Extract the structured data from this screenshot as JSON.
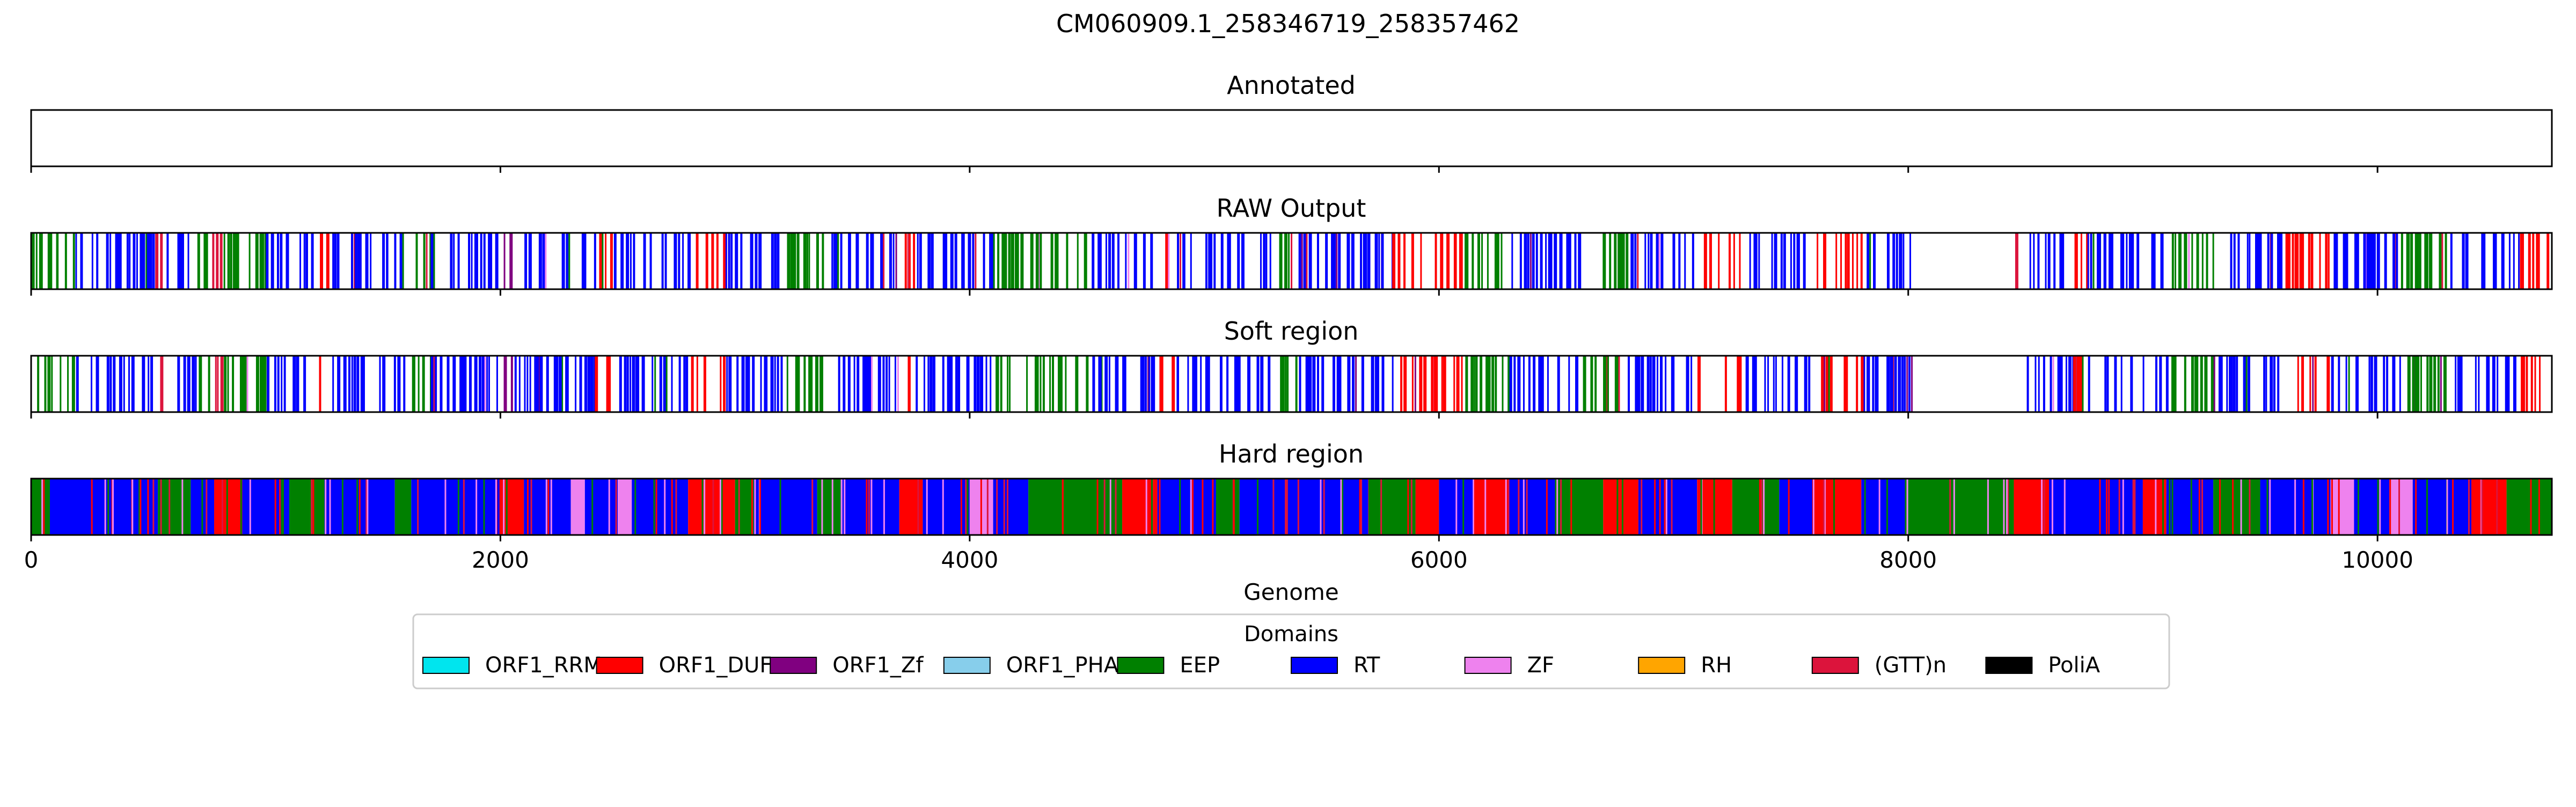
{
  "chart_data": {
    "type": "genome-track",
    "title": "CM060909.1_258346719_258357462",
    "xlabel": "Genome",
    "xlim": [
      0,
      10743
    ],
    "xticks": [
      0,
      2000,
      4000,
      6000,
      8000,
      10000
    ],
    "xtick_labels": [
      "0",
      "2000",
      "4000",
      "6000",
      "8000",
      "10000"
    ],
    "legend": {
      "title": "Domains",
      "placement": "bottom-center",
      "entries": [
        {
          "name": "ORF1_RRM",
          "color": "#00e5ee"
        },
        {
          "name": "ORF1_DUF",
          "color": "#ff0000"
        },
        {
          "name": "ORF1_Zf",
          "color": "#800080"
        },
        {
          "name": "ORF1_PHA",
          "color": "#87ceeb"
        },
        {
          "name": "EEP",
          "color": "#008000"
        },
        {
          "name": "RT",
          "color": "#0000ff"
        },
        {
          "name": "ZF",
          "color": "#ee82ee"
        },
        {
          "name": "RH",
          "color": "#ffa500"
        },
        {
          "name": "(GTT)n",
          "color": "#dc143c"
        },
        {
          "name": "PoliA",
          "color": "#000000"
        }
      ]
    },
    "tracks": [
      {
        "name": "Annotated",
        "mode": "empty",
        "segments": []
      },
      {
        "name": "RAW Output",
        "mode": "sparse",
        "segments": [
          [
            0,
            180,
            "EEP"
          ],
          [
            180,
            520,
            "RT"
          ],
          [
            520,
            560,
            "(GTT)n"
          ],
          [
            560,
            700,
            "RT"
          ],
          [
            700,
            760,
            "EEP"
          ],
          [
            760,
            820,
            "(GTT)n"
          ],
          [
            820,
            1000,
            "EEP"
          ],
          [
            1000,
            1200,
            "RT"
          ],
          [
            1200,
            1260,
            "ORF1_DUF"
          ],
          [
            1260,
            1600,
            "RT"
          ],
          [
            1600,
            1700,
            "EEP"
          ],
          [
            1700,
            2000,
            "RT"
          ],
          [
            2000,
            2060,
            "ORF1_Zf"
          ],
          [
            2060,
            2400,
            "RT"
          ],
          [
            2400,
            2470,
            "ORF1_DUF"
          ],
          [
            2470,
            2800,
            "RT"
          ],
          [
            2800,
            2950,
            "ORF1_DUF"
          ],
          [
            2950,
            3200,
            "RT"
          ],
          [
            3200,
            3400,
            "EEP"
          ],
          [
            3400,
            3700,
            "RT"
          ],
          [
            3700,
            3760,
            "ORF1_DUF"
          ],
          [
            3760,
            4100,
            "RT"
          ],
          [
            4100,
            4500,
            "EEP"
          ],
          [
            4500,
            4800,
            "RT"
          ],
          [
            4800,
            4870,
            "ORF1_DUF"
          ],
          [
            4870,
            5300,
            "RT"
          ],
          [
            5300,
            5400,
            "EEP"
          ],
          [
            5400,
            5800,
            "RT"
          ],
          [
            5800,
            6100,
            "ORF1_DUF"
          ],
          [
            6100,
            6300,
            "EEP"
          ],
          [
            6300,
            6600,
            "RT"
          ],
          [
            6600,
            6800,
            "EEP"
          ],
          [
            6800,
            7100,
            "RT"
          ],
          [
            7100,
            7300,
            "ORF1_DUF"
          ],
          [
            7300,
            7600,
            "RT"
          ],
          [
            7600,
            7800,
            "ORF1_DUF"
          ],
          [
            7800,
            8010,
            "RT"
          ],
          [
            8450,
            8470,
            "(GTT)n"
          ],
          [
            8500,
            8700,
            "RT"
          ],
          [
            8700,
            8760,
            "ORF1_DUF"
          ],
          [
            8760,
            9100,
            "RT"
          ],
          [
            9100,
            9300,
            "EEP"
          ],
          [
            9300,
            9600,
            "RT"
          ],
          [
            9600,
            9800,
            "ORF1_DUF"
          ],
          [
            9800,
            10100,
            "RT"
          ],
          [
            10100,
            10300,
            "EEP"
          ],
          [
            10300,
            10600,
            "RT"
          ],
          [
            10600,
            10743,
            "ORF1_DUF"
          ]
        ]
      },
      {
        "name": "Soft region",
        "mode": "sparse",
        "segments": [
          [
            0,
            180,
            "EEP"
          ],
          [
            180,
            520,
            "RT"
          ],
          [
            520,
            560,
            "(GTT)n"
          ],
          [
            560,
            700,
            "RT"
          ],
          [
            700,
            760,
            "EEP"
          ],
          [
            760,
            820,
            "(GTT)n"
          ],
          [
            820,
            1000,
            "EEP"
          ],
          [
            1000,
            1200,
            "RT"
          ],
          [
            1200,
            1260,
            "ORF1_DUF"
          ],
          [
            1260,
            1600,
            "RT"
          ],
          [
            1600,
            1700,
            "EEP"
          ],
          [
            1700,
            2000,
            "RT"
          ],
          [
            2000,
            2060,
            "ORF1_Zf"
          ],
          [
            2060,
            2400,
            "RT"
          ],
          [
            2400,
            2470,
            "ORF1_DUF"
          ],
          [
            2470,
            2800,
            "RT"
          ],
          [
            2800,
            2950,
            "ORF1_DUF"
          ],
          [
            2950,
            3200,
            "RT"
          ],
          [
            3200,
            3400,
            "EEP"
          ],
          [
            3400,
            3700,
            "RT"
          ],
          [
            3700,
            3760,
            "ORF1_DUF"
          ],
          [
            3760,
            4100,
            "RT"
          ],
          [
            4100,
            4500,
            "EEP"
          ],
          [
            4500,
            4800,
            "RT"
          ],
          [
            4800,
            4870,
            "ORF1_DUF"
          ],
          [
            4870,
            5300,
            "RT"
          ],
          [
            5300,
            5400,
            "EEP"
          ],
          [
            5400,
            5800,
            "RT"
          ],
          [
            5800,
            6100,
            "ORF1_DUF"
          ],
          [
            6100,
            6300,
            "EEP"
          ],
          [
            6300,
            6600,
            "RT"
          ],
          [
            6600,
            6800,
            "EEP"
          ],
          [
            6800,
            7100,
            "RT"
          ],
          [
            7100,
            7300,
            "ORF1_DUF"
          ],
          [
            7300,
            7600,
            "RT"
          ],
          [
            7600,
            7800,
            "ORF1_DUF"
          ],
          [
            7800,
            8010,
            "RT"
          ],
          [
            8450,
            8470,
            "(GTT)n"
          ],
          [
            8500,
            8700,
            "RT"
          ],
          [
            8700,
            8760,
            "ORF1_DUF"
          ],
          [
            8760,
            9100,
            "RT"
          ],
          [
            9100,
            9300,
            "EEP"
          ],
          [
            9300,
            9600,
            "RT"
          ],
          [
            9600,
            9800,
            "ORF1_DUF"
          ],
          [
            9800,
            10100,
            "RT"
          ],
          [
            10100,
            10300,
            "EEP"
          ],
          [
            10300,
            10600,
            "RT"
          ],
          [
            10600,
            10743,
            "ORF1_DUF"
          ]
        ]
      },
      {
        "name": "Hard region",
        "mode": "solid",
        "segments": [
          [
            0,
            80,
            "EEP"
          ],
          [
            80,
            540,
            "RT"
          ],
          [
            540,
            680,
            "EEP"
          ],
          [
            680,
            780,
            "RT"
          ],
          [
            780,
            900,
            "ORF1_DUF"
          ],
          [
            900,
            1100,
            "RT"
          ],
          [
            1100,
            1250,
            "EEP"
          ],
          [
            1250,
            1550,
            "RT"
          ],
          [
            1550,
            1620,
            "EEP"
          ],
          [
            1620,
            2000,
            "RT"
          ],
          [
            2000,
            2100,
            "ORF1_DUF"
          ],
          [
            2100,
            2300,
            "RT"
          ],
          [
            2300,
            2360,
            "ZF"
          ],
          [
            2360,
            2500,
            "RT"
          ],
          [
            2500,
            2560,
            "ZF"
          ],
          [
            2560,
            2800,
            "RT"
          ],
          [
            2800,
            3000,
            "ORF1_DUF"
          ],
          [
            3000,
            3080,
            "EEP"
          ],
          [
            3080,
            3350,
            "RT"
          ],
          [
            3350,
            3450,
            "EEP"
          ],
          [
            3450,
            3700,
            "RT"
          ],
          [
            3700,
            3800,
            "ORF1_DUF"
          ],
          [
            3800,
            4000,
            "RT"
          ],
          [
            4000,
            4100,
            "ZF"
          ],
          [
            4100,
            4250,
            "RT"
          ],
          [
            4250,
            4650,
            "EEP"
          ],
          [
            4650,
            4800,
            "ORF1_DUF"
          ],
          [
            4800,
            5050,
            "RT"
          ],
          [
            5050,
            5150,
            "EEP"
          ],
          [
            5150,
            5700,
            "RT"
          ],
          [
            5700,
            5900,
            "EEP"
          ],
          [
            5900,
            6000,
            "ORF1_DUF"
          ],
          [
            6000,
            6150,
            "RT"
          ],
          [
            6150,
            6300,
            "ORF1_DUF"
          ],
          [
            6300,
            6500,
            "RT"
          ],
          [
            6500,
            6700,
            "EEP"
          ],
          [
            6700,
            6850,
            "ORF1_DUF"
          ],
          [
            6850,
            7100,
            "RT"
          ],
          [
            7100,
            7250,
            "ORF1_DUF"
          ],
          [
            7250,
            7450,
            "EEP"
          ],
          [
            7450,
            7600,
            "RT"
          ],
          [
            7600,
            7800,
            "ORF1_DUF"
          ],
          [
            7800,
            8000,
            "RT"
          ],
          [
            8000,
            8450,
            "EEP"
          ],
          [
            8450,
            8600,
            "ORF1_DUF"
          ],
          [
            8600,
            9000,
            "RT"
          ],
          [
            9000,
            9100,
            "ORF1_DUF"
          ],
          [
            9100,
            9300,
            "RT"
          ],
          [
            9300,
            9500,
            "EEP"
          ],
          [
            9500,
            9800,
            "RT"
          ],
          [
            9800,
            9900,
            "ZF"
          ],
          [
            9900,
            10050,
            "RT"
          ],
          [
            10050,
            10150,
            "ZF"
          ],
          [
            10150,
            10400,
            "RT"
          ],
          [
            10400,
            10550,
            "ORF1_DUF"
          ],
          [
            10550,
            10743,
            "EEP"
          ]
        ]
      }
    ]
  }
}
